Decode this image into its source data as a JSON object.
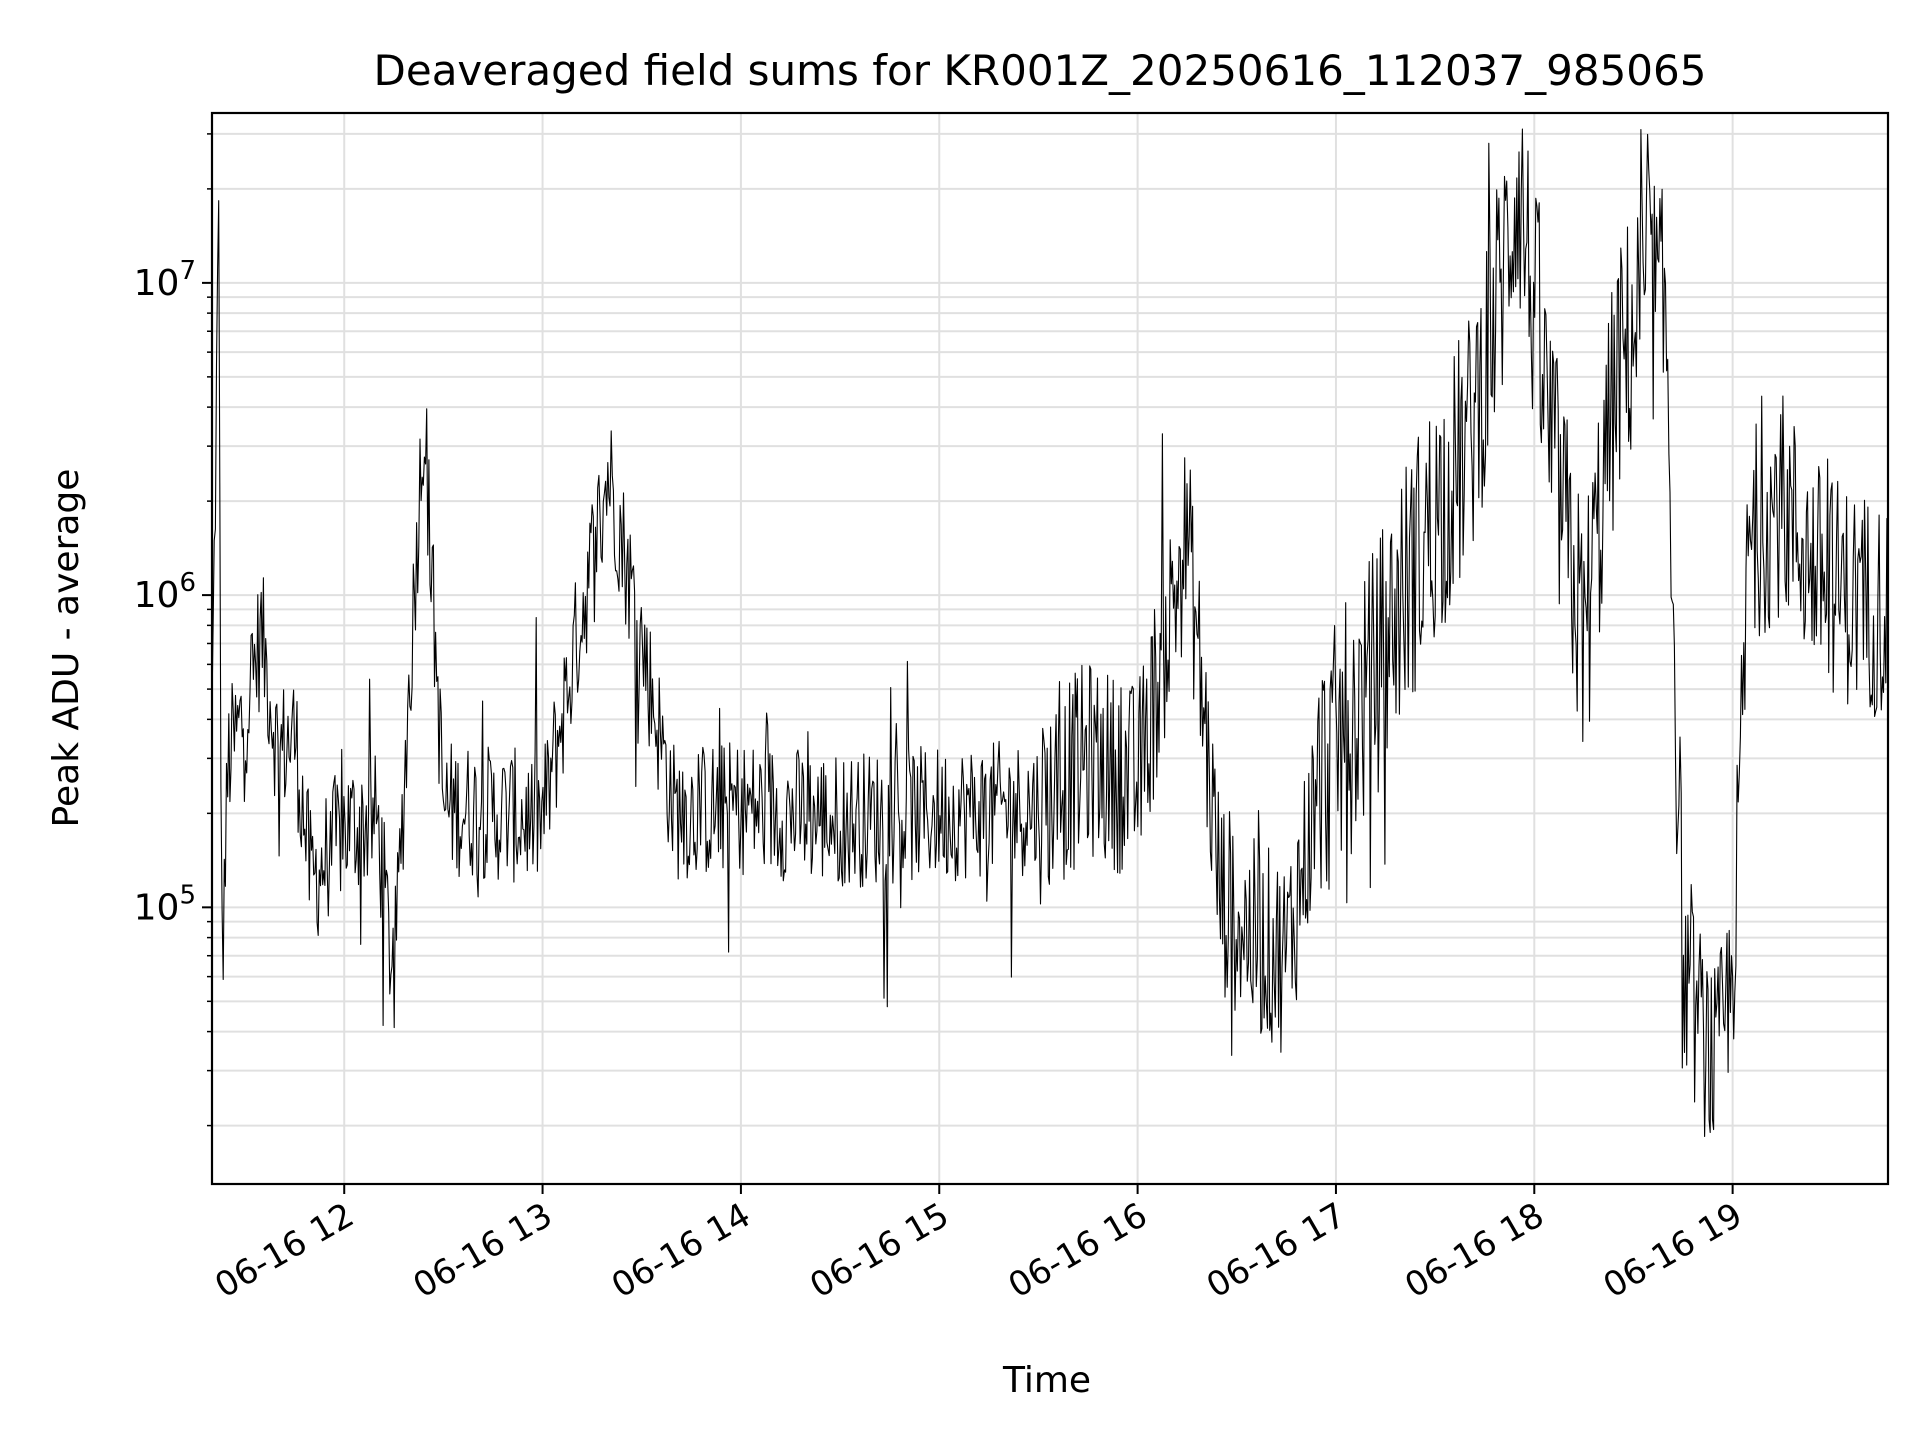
{
  "chart_data": {
    "type": "line",
    "title": "Deaveraged field sums for KR001Z_20250616_112037_985065",
    "xlabel": "Time",
    "ylabel": "Peak ADU - average",
    "x_start": "06-16 11:20",
    "x_end": "06-16 19:47",
    "xlim": [
      "06-16 11:20",
      "06-16 19:47"
    ],
    "x_ticks": [
      "06-16 12",
      "06-16 13",
      "06-16 14",
      "06-16 15",
      "06-16 16",
      "06-16 17",
      "06-16 18",
      "06-16 19"
    ],
    "y_scale": "log",
    "ylim": [
      13000,
      35000000
    ],
    "y_ticks": [
      {
        "value": 100000,
        "base": "10",
        "exp": "5"
      },
      {
        "value": 1000000,
        "base": "10",
        "exp": "6"
      },
      {
        "value": 10000000,
        "base": "10",
        "exp": "7"
      }
    ],
    "grid": true,
    "line_color": "#000000",
    "grid_color": "#e0e0e0",
    "series": [
      {
        "points": [
          [
            "06-16 11:20",
            380000
          ],
          [
            "06-16 11:21",
            2200000
          ],
          [
            "06-16 11:22",
            16000000
          ],
          [
            "06-16 11:23",
            65000
          ],
          [
            "06-16 11:25",
            300000
          ],
          [
            "06-16 11:30",
            420000
          ],
          [
            "06-16 11:35",
            760000
          ],
          [
            "06-16 11:40",
            310000
          ],
          [
            "06-16 11:45",
            360000
          ],
          [
            "06-16 11:50",
            120000
          ],
          [
            "06-16 12:00",
            180000
          ],
          [
            "06-16 12:10",
            190000
          ],
          [
            "06-16 12:15",
            57000
          ],
          [
            "06-16 12:24",
            3800000
          ],
          [
            "06-16 12:30",
            210000
          ],
          [
            "06-16 12:45",
            200000
          ],
          [
            "06-16 13:00",
            190000
          ],
          [
            "06-16 13:20",
            2500000
          ],
          [
            "06-16 13:40",
            200000
          ],
          [
            "06-16 14:00",
            210000
          ],
          [
            "06-16 14:30",
            190000
          ],
          [
            "06-16 15:00",
            200000
          ],
          [
            "06-16 15:30",
            210000
          ],
          [
            "06-16 15:45",
            300000
          ],
          [
            "06-16 16:00",
            250000
          ],
          [
            "06-16 16:15",
            1600000
          ],
          [
            "06-16 16:25",
            110000
          ],
          [
            "06-16 16:35",
            80000
          ],
          [
            "06-16 16:45",
            70000
          ],
          [
            "06-16 16:55",
            250000
          ],
          [
            "06-16 17:10",
            500000
          ],
          [
            "06-16 17:20",
            1000000
          ],
          [
            "06-16 17:30",
            1800000
          ],
          [
            "06-16 17:40",
            3000000
          ],
          [
            "06-16 17:50",
            10000000
          ],
          [
            "06-16 17:55",
            22000000
          ],
          [
            "06-16 18:05",
            3000000
          ],
          [
            "06-16 18:15",
            700000
          ],
          [
            "06-16 18:25",
            5000000
          ],
          [
            "06-16 18:35",
            10000000
          ],
          [
            "06-16 18:40",
            7000000
          ],
          [
            "06-16 18:45",
            60000
          ],
          [
            "06-16 18:55",
            30000
          ],
          [
            "06-16 19:00",
            60000
          ],
          [
            "06-16 19:05",
            1500000
          ],
          [
            "06-16 19:15",
            2000000
          ],
          [
            "06-16 19:25",
            1200000
          ],
          [
            "06-16 19:35",
            1000000
          ],
          [
            "06-16 19:47",
            900000
          ]
        ]
      }
    ]
  }
}
